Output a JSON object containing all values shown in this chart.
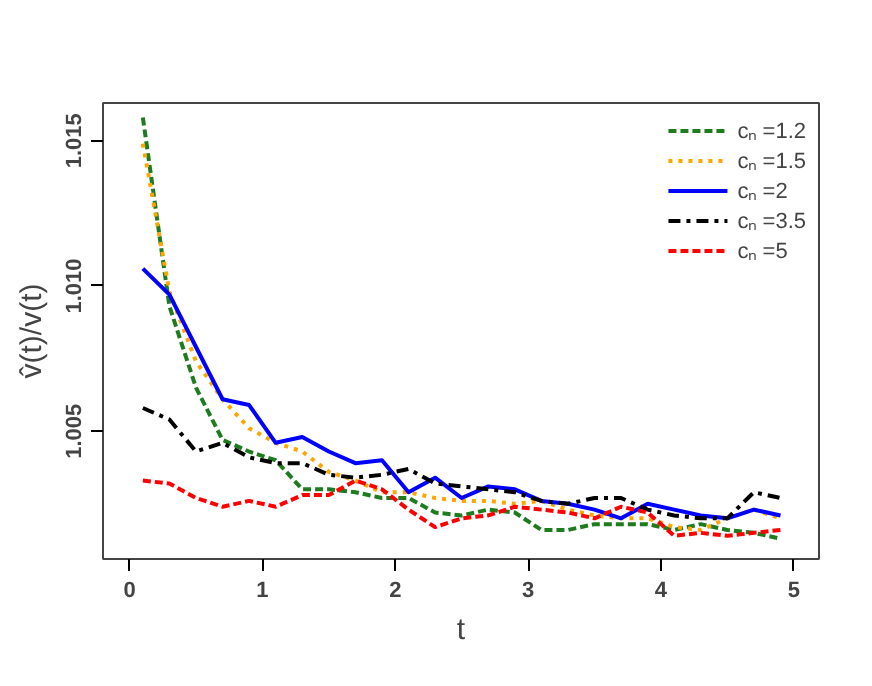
{
  "chart_data": {
    "type": "line",
    "xlabel": "t",
    "ylabel": "v̂(t)/v(t)",
    "x": [
      0.1,
      0.3,
      0.5,
      0.7,
      0.9,
      1.1,
      1.3,
      1.5,
      1.7,
      1.9,
      2.1,
      2.3,
      2.5,
      2.7,
      2.9,
      3.1,
      3.3,
      3.5,
      3.7,
      3.9,
      4.1,
      4.3,
      4.5,
      4.7,
      4.9
    ],
    "xlim": [
      -0.2,
      5.19
    ],
    "xticks": [
      0,
      1,
      2,
      3,
      4,
      5
    ],
    "ylim": [
      1.0006,
      1.0163
    ],
    "yticks": [
      {
        "value": 1.005,
        "label": "1.005"
      },
      {
        "value": 1.01,
        "label": "1.010"
      },
      {
        "value": 1.015,
        "label": "1.015"
      }
    ],
    "grid": false,
    "legend": "top right",
    "marker": "none",
    "series": [
      {
        "name": "cₙ =1.2",
        "color": "#1e7b1e",
        "line_style": "dashed",
        "values": [
          1.0158,
          1.0093,
          1.0065,
          1.0047,
          1.0043,
          1.004,
          1.003,
          1.003,
          1.0029,
          1.0027,
          1.0027,
          1.0022,
          1.0021,
          1.0023,
          1.0022,
          1.0016,
          1.0016,
          1.0018,
          1.0018,
          1.0018,
          1.0016,
          1.0018,
          1.0016,
          1.0015,
          1.0013
        ]
      },
      {
        "name": "cₙ =1.5",
        "color": "#ffa500",
        "line_style": "dotted",
        "values": [
          1.0149,
          1.0098,
          1.0074,
          1.0061,
          1.0051,
          1.0046,
          1.0043,
          1.0036,
          1.0033,
          1.0029,
          1.0029,
          1.0027,
          1.0026,
          1.0026,
          1.0025,
          1.0026,
          1.0023,
          1.0021,
          1.002,
          1.002,
          1.0017,
          1.0016,
          1.002,
          1.0023,
          1.002
        ]
      },
      {
        "name": "cₙ =2",
        "color": "#0000ff",
        "line_style": "solid",
        "values": [
          1.0106,
          1.0097,
          1.0079,
          1.0061,
          1.0059,
          1.0046,
          1.0048,
          1.0043,
          1.0039,
          1.004,
          1.0029,
          1.0034,
          1.0027,
          1.0031,
          1.003,
          1.0026,
          1.0025,
          1.0023,
          1.002,
          1.0025,
          1.0023,
          1.0021,
          1.002,
          1.0023,
          1.0021
        ]
      },
      {
        "name": "cₙ =3.5",
        "color": "#000000",
        "line_style": "dashdot",
        "values": [
          1.0058,
          1.0054,
          1.0043,
          1.0046,
          1.0041,
          1.0039,
          1.0039,
          1.0035,
          1.0034,
          1.0035,
          1.0037,
          1.0032,
          1.0031,
          1.003,
          1.0029,
          1.0026,
          1.0025,
          1.0027,
          1.0027,
          1.0023,
          1.0021,
          1.002,
          1.002,
          1.0029,
          1.0027
        ]
      },
      {
        "name": "cₙ =5",
        "color": "#ff0000",
        "line_style": "dashed",
        "values": [
          1.0033,
          1.0032,
          1.0027,
          1.0024,
          1.0026,
          1.0024,
          1.0028,
          1.0028,
          1.0033,
          1.003,
          1.0023,
          1.0017,
          1.002,
          1.0021,
          1.0024,
          1.0023,
          1.0022,
          1.002,
          1.0024,
          1.0022,
          1.0014,
          1.0015,
          1.0014,
          1.0015,
          1.0016
        ]
      }
    ]
  }
}
